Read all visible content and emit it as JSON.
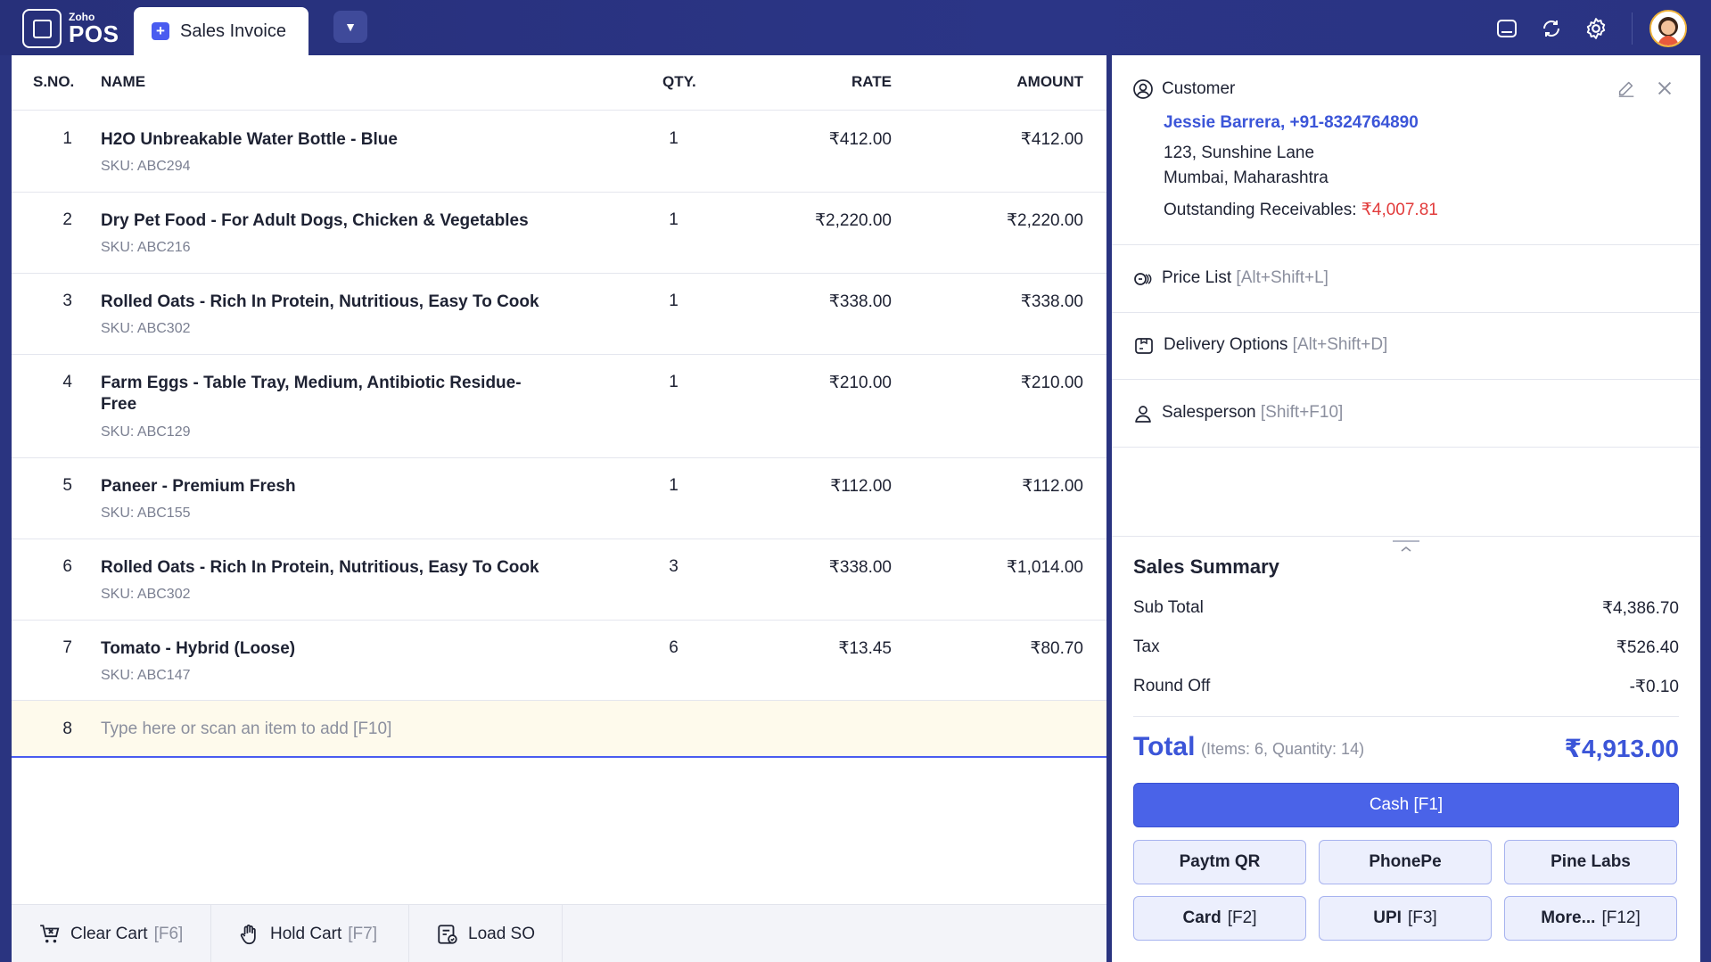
{
  "app": {
    "logo_small": "Zoho",
    "logo_big": "POS"
  },
  "tab": {
    "label": "Sales Invoice"
  },
  "table": {
    "headers": {
      "sno": "S.NO.",
      "name": "NAME",
      "qty": "QTY.",
      "rate": "RATE",
      "amount": "AMOUNT"
    },
    "rows": [
      {
        "sno": "1",
        "name": "H2O Unbreakable Water Bottle - Blue",
        "sku": "SKU: ABC294",
        "qty": "1",
        "rate": "₹412.00",
        "amount": "₹412.00"
      },
      {
        "sno": "2",
        "name": "Dry Pet Food - For Adult Dogs, Chicken & Vegetables",
        "sku": "SKU: ABC216",
        "qty": "1",
        "rate": "₹2,220.00",
        "amount": "₹2,220.00"
      },
      {
        "sno": "3",
        "name": "Rolled Oats - Rich In Protein, Nutritious, Easy To Cook",
        "sku": "SKU: ABC302",
        "qty": "1",
        "rate": "₹338.00",
        "amount": "₹338.00"
      },
      {
        "sno": "4",
        "name": "Farm Eggs - Table Tray, Medium, Antibiotic Residue-Free",
        "sku": "SKU: ABC129",
        "qty": "1",
        "rate": "₹210.00",
        "amount": "₹210.00"
      },
      {
        "sno": "5",
        "name": "Paneer - Premium Fresh",
        "sku": "SKU: ABC155",
        "qty": "1",
        "rate": "₹112.00",
        "amount": "₹112.00"
      },
      {
        "sno": "6",
        "name": "Rolled Oats - Rich In Protein, Nutritious, Easy To Cook",
        "sku": "SKU: ABC302",
        "qty": "3",
        "rate": "₹338.00",
        "amount": "₹1,014.00"
      },
      {
        "sno": "7",
        "name": "Tomato - Hybrid (Loose)",
        "sku": "SKU: ABC147",
        "qty": "6",
        "rate": "₹13.45",
        "amount": "₹80.70"
      }
    ],
    "entry": {
      "sno": "8",
      "placeholder": "Type here or scan an item to add  [F10]"
    }
  },
  "bottom": {
    "clear": {
      "label": "Clear Cart",
      "key": "[F6]"
    },
    "hold": {
      "label": "Hold Cart",
      "key": "[F7]"
    },
    "load": {
      "label": "Load SO"
    }
  },
  "customer": {
    "section_label": "Customer",
    "name_phone": "Jessie Barrera,  +91-8324764890",
    "address_line1": "123, Sunshine Lane",
    "address_line2": "Mumbai, Maharashtra",
    "outstanding_label": "Outstanding Receivables: ",
    "outstanding_value": "₹4,007.81"
  },
  "options": {
    "price_list": {
      "label": "Price List",
      "key": "[Alt+Shift+L]"
    },
    "delivery": {
      "label": "Delivery Options",
      "key": "[Alt+Shift+D]"
    },
    "salesperson": {
      "label": "Salesperson",
      "key": "[Shift+F10]"
    }
  },
  "summary": {
    "title": "Sales Summary",
    "sub_total_label": "Sub Total",
    "sub_total": "₹4,386.70",
    "tax_label": "Tax",
    "tax": "₹526.40",
    "round_off_label": "Round Off",
    "round_off": "-₹0.10",
    "total_label": "Total",
    "total_meta": "(Items: 6, Quantity: 14)",
    "total": "₹4,913.00"
  },
  "payments": {
    "cash": "Cash  [F1]",
    "paytm": "Paytm QR",
    "phonepe": "PhonePe",
    "pinelabs": "Pine Labs",
    "card": {
      "label": "Card",
      "key": "[F2]"
    },
    "upi": {
      "label": "UPI",
      "key": "[F3]"
    },
    "more": {
      "label": "More...",
      "key": "[F12]"
    }
  },
  "colors": {
    "brand_bar": "#2a3480",
    "accent": "#4a63e8",
    "negative": "#e23b3b",
    "entry_bg": "#fefaec"
  }
}
